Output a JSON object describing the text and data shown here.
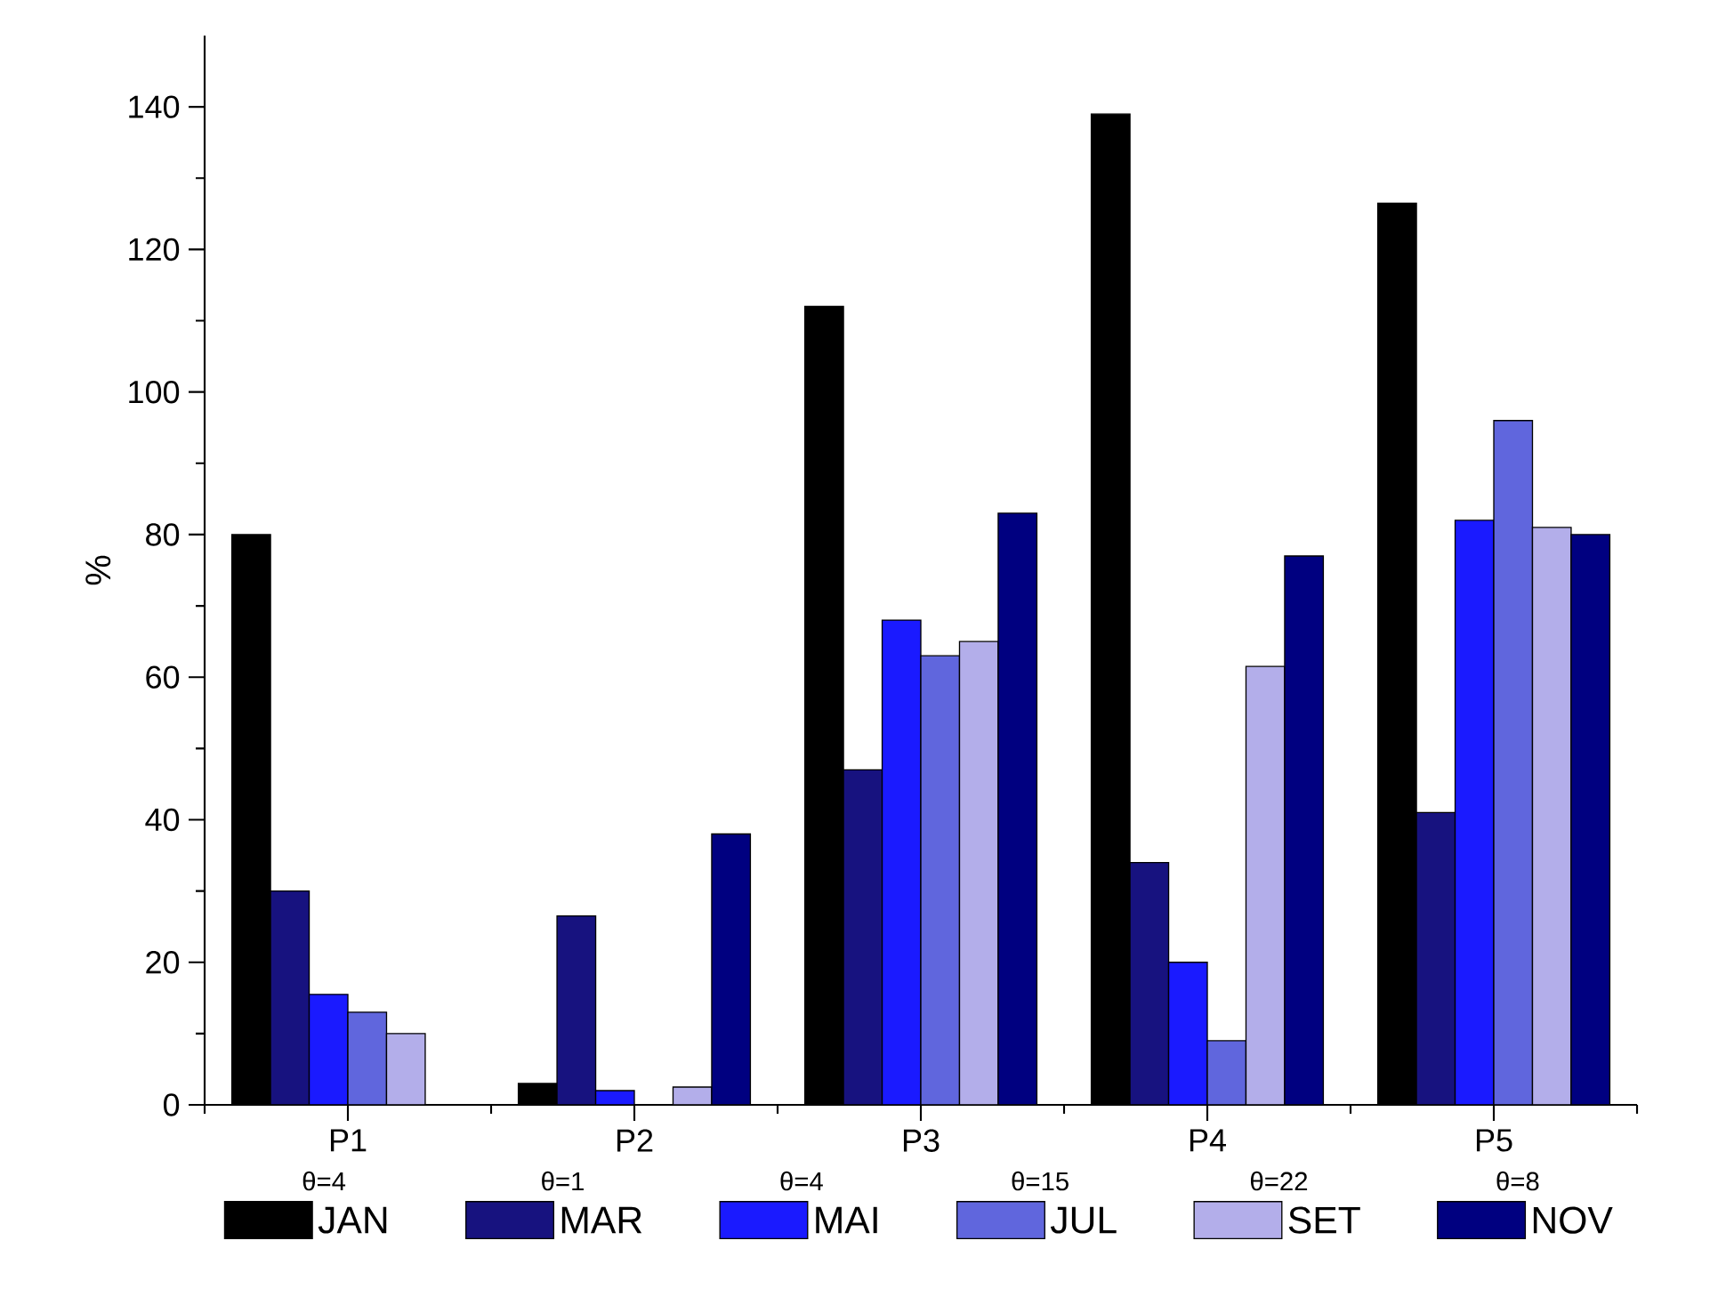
{
  "chart_data": {
    "type": "bar",
    "ylabel": "%",
    "categories": [
      "P1",
      "P2",
      "P3",
      "P4",
      "P5"
    ],
    "series": [
      {
        "name": "JAN",
        "color": "#000000",
        "values": [
          80,
          3,
          112,
          139,
          126.5
        ]
      },
      {
        "name": "MAR",
        "color": "#17127f",
        "values": [
          30,
          26.5,
          47,
          34,
          41
        ]
      },
      {
        "name": "MAI",
        "color": "#1a1aff",
        "values": [
          15.5,
          2,
          68,
          20,
          82
        ]
      },
      {
        "name": "JUL",
        "color": "#6066dd",
        "values": [
          13,
          null,
          63,
          9,
          96
        ]
      },
      {
        "name": "SET",
        "color": "#b3aeea",
        "values": [
          10,
          2.5,
          65,
          61.5,
          81
        ]
      },
      {
        "name": "NOV",
        "color": "#000080",
        "values": [
          null,
          38,
          83,
          77,
          80
        ]
      }
    ],
    "ylim": [
      0,
      150
    ],
    "yticks": [
      0,
      20,
      40,
      60,
      80,
      100,
      120,
      140
    ],
    "legend": "bottom",
    "grid": false,
    "annotations": [
      "θ=4",
      "θ=1",
      "θ=4",
      "θ=15",
      "θ=22",
      "θ=8"
    ]
  }
}
